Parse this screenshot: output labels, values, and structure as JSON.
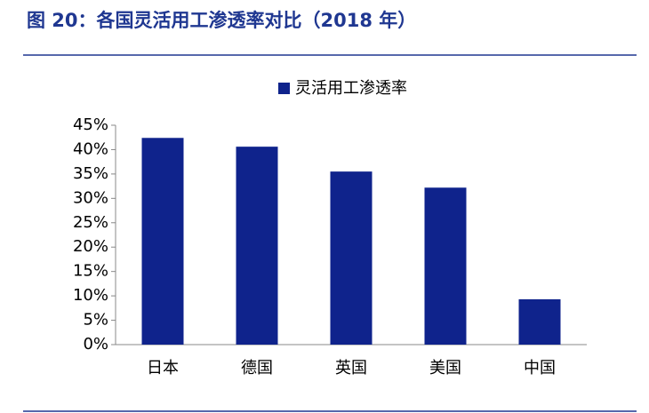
{
  "chart_data": {
    "type": "bar",
    "title": "图 20：各国灵活用工渗透率对比（2018 年）",
    "categories": [
      "日本",
      "德国",
      "英国",
      "美国",
      "中国"
    ],
    "series": [
      {
        "name": "灵活用工渗透率",
        "color": "#0f238c",
        "values": [
          42.4,
          40.6,
          35.5,
          32.2,
          9.3
        ]
      }
    ],
    "ylim": [
      0,
      45
    ],
    "yticks": [
      {
        "value": 0,
        "label": "0%"
      },
      {
        "value": 5,
        "label": "5%"
      },
      {
        "value": 10,
        "label": "10%"
      },
      {
        "value": 15,
        "label": "15%"
      },
      {
        "value": 20,
        "label": "20%"
      },
      {
        "value": 25,
        "label": "25%"
      },
      {
        "value": 30,
        "label": "30%"
      },
      {
        "value": 35,
        "label": "35%"
      },
      {
        "value": 40,
        "label": "40%"
      },
      {
        "value": 45,
        "label": "45%"
      }
    ],
    "legend": "top"
  }
}
